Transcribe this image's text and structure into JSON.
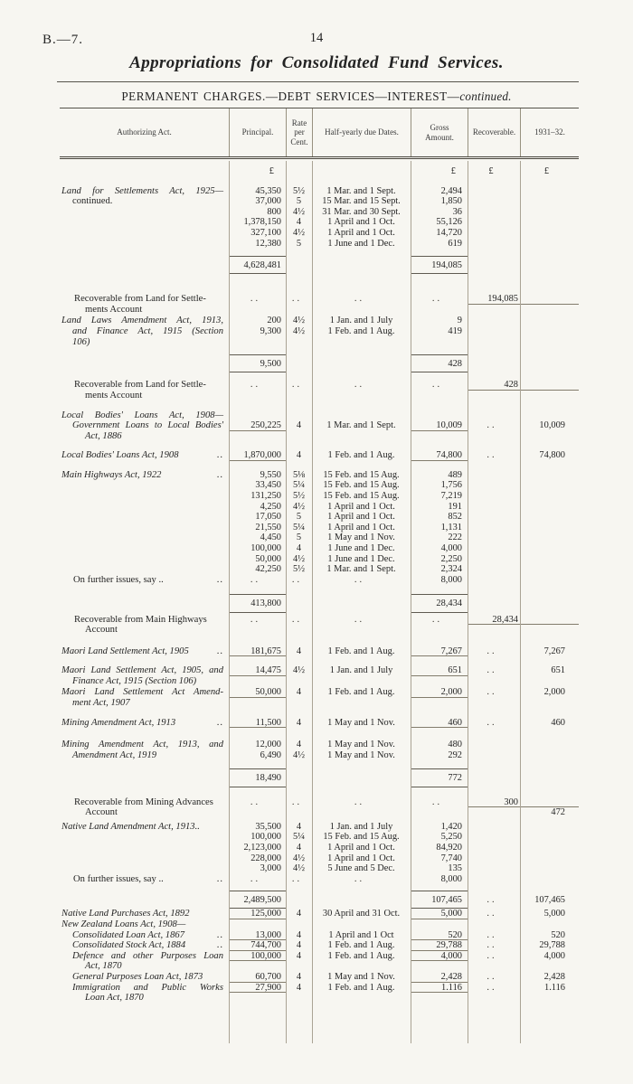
{
  "page": {
    "doc_ref": "B.—7.",
    "page_number": "14",
    "title": "Appropriations for Consolidated Fund Services.",
    "heading": "PERMANENT CHARGES.—DEBT SERVICES—INTEREST—",
    "heading_continued": "continued.",
    "currency_symbol": "£",
    "colors": {
      "paper": "#f7f6f1",
      "ink": "#242424",
      "rule": "#55524a",
      "light_rule": "#aaa394"
    }
  },
  "table": {
    "headers": {
      "act": "Authorizing Act.",
      "principal": "Principal.",
      "rate": "Rate per Cent.",
      "dates": "Half-yearly due Dates.",
      "gross": "Gross Amount.",
      "recoverable": "Recoverable.",
      "year": "1931–32."
    }
  },
  "sections": [
    {
      "type": "currency"
    },
    {
      "type": "act",
      "act_lines": [
        {
          "text": "Land for Settlements Act, 1925—",
          "italic": true,
          "justify": true
        },
        {
          "text": "continued.",
          "italic": false,
          "indent": 1
        }
      ],
      "entries": [
        {
          "principal": "45,350",
          "rate": "5½",
          "dates": "1 Mar. and 1 Sept.",
          "gross": "2,494"
        },
        {
          "principal": "37,000",
          "rate": "5",
          "dates": "15 Mar. and 15 Sept.",
          "gross": "1,850"
        },
        {
          "principal": "800",
          "rate": "4½",
          "dates": "31 Mar. and 30 Sept.",
          "gross": "36"
        },
        {
          "principal": "1,378,150",
          "rate": "4",
          "dates": "1 April and 1 Oct.",
          "gross": "55,126"
        },
        {
          "principal": "327,100",
          "rate": "4½",
          "dates": "1 April and 1 Oct.",
          "gross": "14,720"
        },
        {
          "principal": "12,380",
          "rate": "5",
          "dates": "1 June and 1 Dec.",
          "gross": "619"
        }
      ]
    },
    {
      "type": "total",
      "principal": "4,628,481",
      "gross": "194,085"
    },
    {
      "type": "recoverable",
      "lines": [
        "Recoverable from Land for Settle-",
        "ments Account"
      ],
      "value": "194,085"
    },
    {
      "type": "act",
      "act_lines": [
        {
          "text": "Land Laws Amendment Act, 1913,",
          "italic": true,
          "justify": true
        },
        {
          "text": "and Finance Act, 1915 (Section",
          "italic": true,
          "indent": 1,
          "justify": true
        },
        {
          "text": "106)",
          "italic": true,
          "indent": 1
        }
      ],
      "entries": [
        {
          "principal": "200",
          "rate": "4½",
          "dates": "1 Jan. and 1 July",
          "gross": "9"
        },
        {
          "principal": "9,300",
          "rate": "4½",
          "dates": "1 Feb. and 1 Aug.",
          "gross": "419"
        }
      ]
    },
    {
      "type": "total",
      "principal": "9,500",
      "gross": "428"
    },
    {
      "type": "recoverable",
      "lines": [
        "Recoverable from Land for Settle-",
        "ments Account"
      ],
      "value": "428"
    },
    {
      "type": "act",
      "underline": true,
      "value_offset": 1,
      "act_lines": [
        {
          "text": "Local Bodies' Loans Act, 1908—",
          "italic": true,
          "justify": true
        },
        {
          "text": "Government Loans to Local Bodies'",
          "italic": true,
          "indent": 1,
          "justify": true
        },
        {
          "text": "Act, 1886",
          "italic": true,
          "indent": 2
        }
      ],
      "entries": [
        {
          "principal": "250,225",
          "rate": "4",
          "dates": "1 Mar. and 1 Sept.",
          "gross": "10,009",
          "recoverable": "..",
          "year": "10,009"
        }
      ]
    },
    {
      "type": "act",
      "underline": true,
      "act_lines": [
        {
          "text": "Local Bodies' Loans Act, 1908",
          "italic": true,
          "dots": true
        }
      ],
      "entries": [
        {
          "principal": "1,870,000",
          "rate": "4",
          "dates": "1 Feb. and 1 Aug.",
          "gross": "74,800",
          "recoverable": "..",
          "year": "74,800"
        }
      ]
    },
    {
      "type": "act",
      "act_lines": [
        {
          "text": "Main Highways Act, 1922",
          "italic": true,
          "dots": true
        }
      ],
      "entries": [
        {
          "principal": "9,550",
          "rate": "5⅛",
          "dates": "15 Feb. and 15 Aug.",
          "gross": "489"
        },
        {
          "principal": "33,450",
          "rate": "5¼",
          "dates": "15 Feb. and 15 Aug.",
          "gross": "1,756"
        },
        {
          "principal": "131,250",
          "rate": "5½",
          "dates": "15 Feb. and 15 Aug.",
          "gross": "7,219"
        },
        {
          "principal": "4,250",
          "rate": "4½",
          "dates": "1 April and 1 Oct.",
          "gross": "191"
        },
        {
          "principal": "17,050",
          "rate": "5",
          "dates": "1 April and 1 Oct.",
          "gross": "852"
        },
        {
          "principal": "21,550",
          "rate": "5¼",
          "dates": "1 April and 1 Oct.",
          "gross": "1,131"
        },
        {
          "principal": "4,450",
          "rate": "5",
          "dates": "1 May and 1 Nov.",
          "gross": "222"
        },
        {
          "principal": "100,000",
          "rate": "4",
          "dates": "1 June and 1 Dec.",
          "gross": "4,000"
        },
        {
          "principal": "50,000",
          "rate": "4½",
          "dates": "1 June and 1 Dec.",
          "gross": "2,250"
        },
        {
          "principal": "42,250",
          "rate": "5½",
          "dates": "1 Mar. and 1 Sept.",
          "gross": "2,324"
        },
        {
          "act_text": "On further issues, say ..",
          "principal": "..",
          "rate": "..",
          "dates": "..",
          "gross": "8,000"
        }
      ]
    },
    {
      "type": "total",
      "principal": "413,800",
      "gross": "28,434"
    },
    {
      "type": "recoverable",
      "lines": [
        "Recoverable from Main Highways",
        "Account"
      ],
      "value": "28,434"
    },
    {
      "type": "act",
      "underline": true,
      "act_lines": [
        {
          "text": "Maori Land Settlement Act, 1905",
          "italic": true,
          "dots": true
        }
      ],
      "entries": [
        {
          "principal": "181,675",
          "rate": "4",
          "dates": "1 Feb. and 1 Aug.",
          "gross": "7,267",
          "recoverable": "..",
          "year": "7,267"
        }
      ]
    },
    {
      "type": "act",
      "underline": true,
      "act_lines": [
        {
          "text": "Maori Land Settlement Act, 1905, and",
          "italic": true,
          "justify": true
        },
        {
          "text": "Finance Act, 1915 (Section 106)",
          "italic": true,
          "indent": 1
        }
      ],
      "entries": [
        {
          "principal": "14,475",
          "rate": "4½",
          "dates": "1 Jan. and 1 July",
          "gross": "651",
          "recoverable": "..",
          "year": "651"
        }
      ]
    },
    {
      "type": "act",
      "underline": true,
      "act_lines": [
        {
          "text": "Maori Land Settlement Act Amend-",
          "italic": true,
          "justify": true
        },
        {
          "text": "ment Act, 1907",
          "italic": true,
          "indent": 1
        }
      ],
      "entries": [
        {
          "principal": "50,000",
          "rate": "4",
          "dates": "1 Feb. and 1 Aug.",
          "gross": "2,000",
          "recoverable": "..",
          "year": "2,000"
        }
      ]
    },
    {
      "type": "act",
      "underline": true,
      "act_lines": [
        {
          "text": "Mining Amendment Act, 1913",
          "italic": true,
          "dots": true
        }
      ],
      "entries": [
        {
          "principal": "11,500",
          "rate": "4",
          "dates": "1 May and 1 Nov.",
          "gross": "460",
          "recoverable": "..",
          "year": "460"
        }
      ]
    },
    {
      "type": "act",
      "act_lines": [
        {
          "text": "Mining Amendment Act, 1913, and",
          "italic": true,
          "justify": true
        },
        {
          "text": "Amendment Act, 1919",
          "italic": true,
          "indent": 1
        }
      ],
      "entries": [
        {
          "principal": "12,000",
          "rate": "4",
          "dates": "1 May and 1 Nov.",
          "gross": "480"
        },
        {
          "principal": "6,490",
          "rate": "4½",
          "dates": "1 May and 1 Nov.",
          "gross": "292"
        }
      ]
    },
    {
      "type": "total",
      "principal": "18,490",
      "gross": "772"
    },
    {
      "type": "recoverable",
      "lines": [
        "Recoverable from Mining Advances",
        "Account"
      ],
      "value": "300",
      "net_year": "472"
    },
    {
      "type": "act",
      "act_lines": [
        {
          "text": "Native Land Amendment Act, 1913..",
          "italic": true
        }
      ],
      "entries": [
        {
          "principal": "35,500",
          "rate": "4",
          "dates": "1 Jan. and 1 July",
          "gross": "1,420"
        },
        {
          "principal": "100,000",
          "rate": "5¼",
          "dates": "15 Feb. and 15 Aug.",
          "gross": "5,250"
        },
        {
          "principal": "2,123,000",
          "rate": "4",
          "dates": "1 April and 1 Oct.",
          "gross": "84,920"
        },
        {
          "principal": "228,000",
          "rate": "4½",
          "dates": "1 April and 1 Oct.",
          "gross": "7,740"
        },
        {
          "principal": "3,000",
          "rate": "4½",
          "dates": "5 June and 5 Dec.",
          "gross": "135"
        },
        {
          "act_text": "On further issues, say ..",
          "principal": "..",
          "rate": "..",
          "dates": "..",
          "gross": "8,000"
        }
      ]
    },
    {
      "type": "total",
      "principal": "2,489,500",
      "gross": "107,465",
      "recoverable": "..",
      "year": "107,465"
    },
    {
      "type": "act",
      "underline": true,
      "act_lines": [
        {
          "text": "Native Land Purchases Act, 1892",
          "italic": true
        }
      ],
      "entries": [
        {
          "principal": "125,000",
          "rate": "4",
          "dates": "30 April and 31 Oct.",
          "gross": "5,000",
          "recoverable": "..",
          "year": "5,000"
        }
      ]
    },
    {
      "type": "act",
      "underline": true,
      "value_offset": 1,
      "act_lines": [
        {
          "text": "New Zealand Loans Act, 1908—",
          "italic": true
        },
        {
          "text": "Consolidated Loan Act, 1867",
          "italic": true,
          "indent": 1,
          "dots": true
        }
      ],
      "entries": [
        {
          "principal": "13,000",
          "rate": "4",
          "dates": "1 April and 1 Oct",
          "gross": "520",
          "recoverable": "..",
          "year": "520"
        }
      ]
    },
    {
      "type": "act",
      "underline": true,
      "act_lines": [
        {
          "text": "Consolidated Stock Act, 1884",
          "italic": true,
          "indent": 1,
          "dots": true
        }
      ],
      "entries": [
        {
          "principal": "744,700",
          "rate": "4",
          "dates": "1 Feb. and 1 Aug.",
          "gross": "29,788",
          "recoverable": "..",
          "year": "29,788"
        }
      ]
    },
    {
      "type": "act",
      "underline": true,
      "act_lines": [
        {
          "text": "Defence and other Purposes Loan",
          "italic": true,
          "indent": 1,
          "justify": true
        },
        {
          "text": "Act, 1870",
          "italic": true,
          "indent": 2
        }
      ],
      "entries": [
        {
          "principal": "100,000",
          "rate": "4",
          "dates": "1 Feb. and 1 Aug.",
          "gross": "4,000",
          "recoverable": "..",
          "year": "4,000"
        }
      ]
    },
    {
      "type": "act",
      "underline": true,
      "act_lines": [
        {
          "text": "General Purposes Loan Act, 1873",
          "italic": true,
          "indent": 1
        }
      ],
      "entries": [
        {
          "principal": "60,700",
          "rate": "4",
          "dates": "1 May and 1 Nov.",
          "gross": "2,428",
          "recoverable": "..",
          "year": "2,428"
        }
      ]
    },
    {
      "type": "act",
      "underline": true,
      "act_lines": [
        {
          "text": "Immigration and Public Works",
          "italic": true,
          "indent": 1,
          "justify": true
        },
        {
          "text": "Loan Act, 1870",
          "italic": true,
          "indent": 2
        }
      ],
      "entries": [
        {
          "principal": "27,900",
          "rate": "4",
          "dates": "1 Feb. and 1 Aug.",
          "gross": "1.116",
          "recoverable": "..",
          "year": "1.116"
        }
      ]
    }
  ]
}
